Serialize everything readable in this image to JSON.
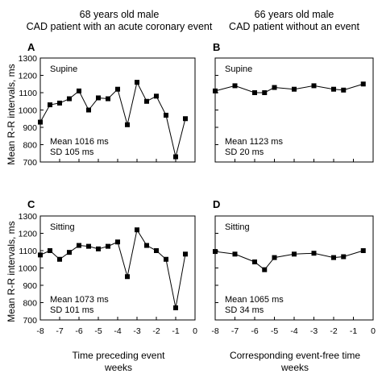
{
  "chart_data": [
    {
      "type": "line",
      "panel": "A",
      "column_title": [
        "68 years old male",
        "CAD patient with an acute coronary event"
      ],
      "condition": "Supine",
      "stats": [
        "Mean 1016 ms",
        "SD 105 ms"
      ],
      "x": [
        -8,
        -7.5,
        -7,
        -6.5,
        -6,
        -5.5,
        -5,
        -4.5,
        -4,
        -3.5,
        -3,
        -2.5,
        -2,
        -1.5,
        -1,
        -0.5
      ],
      "values": [
        930,
        1030,
        1040,
        1065,
        1110,
        1000,
        1070,
        1065,
        1120,
        915,
        1160,
        1050,
        1080,
        970,
        730,
        950
      ],
      "ylim": [
        700,
        1300
      ],
      "yticks": [
        "1300",
        "1200",
        "1100",
        "1000",
        "900",
        "800",
        "700"
      ],
      "xlim": [
        -8,
        0
      ],
      "ylabel": "Mean R-R intervals, ms"
    },
    {
      "type": "line",
      "panel": "B",
      "column_title": [
        "66 years old male",
        "CAD patient without an event"
      ],
      "condition": "Supine",
      "stats": [
        "Mean 1123 ms",
        "SD 20 ms"
      ],
      "x": [
        -8,
        -7,
        -6,
        -5.5,
        -5,
        -4,
        -3,
        -2,
        -1.5,
        -0.5
      ],
      "values": [
        1110,
        1140,
        1100,
        1100,
        1130,
        1120,
        1140,
        1120,
        1115,
        1150
      ],
      "ylim": [
        700,
        1300
      ],
      "xlim": [
        -8,
        0
      ]
    },
    {
      "type": "line",
      "panel": "C",
      "condition": "Sitting",
      "stats": [
        "Mean 1073 ms",
        "SD 101 ms"
      ],
      "x": [
        -8,
        -7.5,
        -7,
        -6.5,
        -6,
        -5.5,
        -5,
        -4.5,
        -4,
        -3.5,
        -3,
        -2.5,
        -2,
        -1.5,
        -1,
        -0.5
      ],
      "values": [
        1075,
        1100,
        1050,
        1090,
        1130,
        1125,
        1110,
        1125,
        1150,
        950,
        1220,
        1130,
        1100,
        1050,
        770,
        1080
      ],
      "ylim": [
        700,
        1300
      ],
      "yticks": [
        "1300",
        "1200",
        "1100",
        "1000",
        "900",
        "800",
        "700"
      ],
      "xlim": [
        -8,
        0
      ],
      "xticks": [
        "-8",
        "-7",
        "-6",
        "-5",
        "-4",
        "-3",
        "-2",
        "-1",
        "0"
      ],
      "ylabel": "Mean R-R intervals, ms",
      "xlabel": [
        "Time preceding event",
        "weeks"
      ]
    },
    {
      "type": "line",
      "panel": "D",
      "condition": "Sitting",
      "stats": [
        "Mean 1065 ms",
        "SD 34 ms"
      ],
      "x": [
        -8,
        -7,
        -6,
        -5.5,
        -5,
        -4,
        -3,
        -2,
        -1.5,
        -0.5
      ],
      "values": [
        1095,
        1080,
        1035,
        990,
        1060,
        1080,
        1085,
        1060,
        1065,
        1100
      ],
      "ylim": [
        700,
        1300
      ],
      "xlim": [
        -8,
        0
      ],
      "xticks": [
        "-8",
        "-7",
        "-6",
        "-5",
        "-4",
        "-3",
        "-2",
        "-1",
        "0"
      ],
      "xlabel": [
        "Corresponding event-free time",
        "weeks"
      ]
    }
  ]
}
